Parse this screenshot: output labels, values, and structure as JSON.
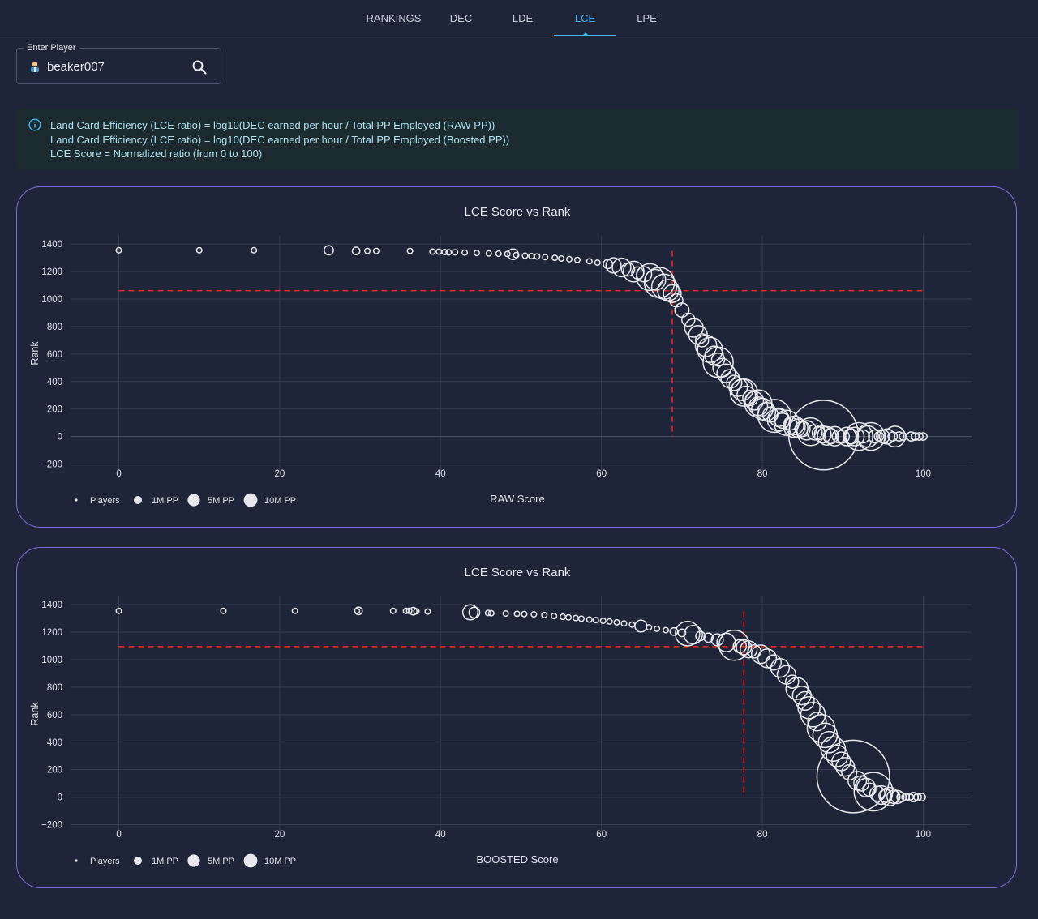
{
  "nav": {
    "tabs": [
      {
        "label": "RANKINGS",
        "active": false
      },
      {
        "label": "DEC",
        "active": false
      },
      {
        "label": "LDE",
        "active": false
      },
      {
        "label": "LCE",
        "active": true
      },
      {
        "label": "LPE",
        "active": false
      }
    ]
  },
  "player": {
    "legend": "Enter Player",
    "value": "beaker007",
    "avatar_icon": "user-avatar-icon",
    "search_icon": "search-icon"
  },
  "info": {
    "icon": "info-icon",
    "lines": [
      "Land Card Efficiency (LCE ratio) = log10(DEC earned per hour / Total PP Employed (RAW PP))",
      "Land Card Efficiency (LCE ratio) = log10(DEC earned per hour / Total PP Employed (Boosted PP))",
      "LCE Score = Normalized ratio (from 0 to 100)"
    ]
  },
  "colors": {
    "accent": "#3fb6f2",
    "card_border": "#7b6fd6",
    "marker": "#e6e8ee",
    "reference_line": "#e02424",
    "info_text": "#aee3f2"
  },
  "chart_data": [
    {
      "type": "scatter",
      "title": "LCE Score vs Rank",
      "xlabel": "RAW Score",
      "ylabel": "Rank",
      "xlim": [
        -6,
        106
      ],
      "ylim": [
        -250,
        1460
      ],
      "xticks": [
        0,
        20,
        40,
        60,
        80,
        100
      ],
      "xtick_labels": [
        "0",
        "20",
        "40",
        "60",
        "80",
        "100"
      ],
      "yticks": [
        -200,
        0,
        200,
        400,
        600,
        800,
        1000,
        1200,
        1400
      ],
      "ytick_labels": [
        "−200",
        "0",
        "200",
        "400",
        "600",
        "800",
        "1000",
        "1200",
        "1400"
      ],
      "grid": true,
      "legend": {
        "placement": "bottom-left",
        "entries": [
          {
            "label": "Players",
            "size": "small"
          },
          {
            "label": "1M PP",
            "size": "1M"
          },
          {
            "label": "5M PP",
            "size": "5M"
          },
          {
            "label": "10M PP",
            "size": "10M"
          }
        ]
      },
      "highlight": {
        "x": 68.8,
        "y": 1061
      },
      "series": [
        {
          "x": [
            0,
            10,
            16.8,
            26.1,
            29.5,
            30.9,
            32,
            36.2,
            39,
            39.8,
            40.5,
            41,
            41.8,
            43,
            44.5,
            46,
            47.2,
            48.3,
            49,
            49.4,
            50.5,
            51.3,
            52,
            53,
            54.2,
            55,
            56,
            57,
            58.5,
            59.5,
            60.8,
            61.5,
            62.5,
            63.3,
            64,
            64.5,
            65.3,
            66,
            66.7,
            67.2,
            67.8,
            68.3,
            68.8,
            69.3,
            70,
            70.8,
            71.5,
            72,
            72.5,
            73,
            73.5,
            74,
            74.5,
            74.5,
            75,
            75.5,
            76,
            76.5,
            77,
            77.5,
            77.7,
            78,
            78.5,
            79,
            79.5,
            79.5,
            80,
            80.5,
            81,
            81.5,
            82,
            82,
            82.5,
            83,
            83.5,
            84,
            84,
            84.5,
            85,
            85.5,
            86,
            86.5,
            87,
            87.5,
            87.6,
            88,
            88.5,
            89,
            89.5,
            90,
            90.5,
            91,
            91.5,
            92,
            92.5,
            93.1,
            93.5,
            94,
            94.5,
            95,
            95.5,
            96.2,
            96.5,
            97,
            97.5,
            98.5,
            99,
            99.5,
            100
          ],
          "y": [
            1355,
            1355,
            1355,
            1355,
            1350,
            1350,
            1350,
            1350,
            1345,
            1345,
            1342,
            1340,
            1340,
            1338,
            1335,
            1332,
            1330,
            1328,
            1326,
            1320,
            1315,
            1312,
            1310,
            1305,
            1300,
            1295,
            1290,
            1285,
            1275,
            1265,
            1255,
            1245,
            1230,
            1215,
            1200,
            1190,
            1180,
            1160,
            1140,
            1120,
            1090,
            1065,
            1040,
            990,
            920,
            850,
            790,
            740,
            700,
            660,
            630,
            590,
            560,
            540,
            500,
            460,
            420,
            390,
            360,
            340,
            320,
            300,
            280,
            260,
            240,
            220,
            200,
            180,
            160,
            150,
            140,
            120,
            115,
            100,
            95,
            80,
            70,
            60,
            55,
            45,
            35,
            30,
            25,
            15,
            10,
            5,
            3,
            2,
            1,
            0,
            0,
            0,
            0,
            0,
            0,
            0,
            0,
            0,
            0,
            0,
            0,
            0,
            0,
            0,
            0,
            0,
            0,
            0,
            0
          ],
          "pp_millions": [
            0.1,
            0.1,
            0.1,
            0.3,
            0.2,
            0.1,
            0.1,
            0.1,
            0.1,
            0.1,
            0.1,
            0.1,
            0.1,
            0.1,
            0.1,
            0.1,
            0.1,
            0.1,
            0.4,
            0.1,
            0.1,
            0.1,
            0.1,
            0.1,
            0.1,
            0.1,
            0.1,
            0.1,
            0.1,
            0.1,
            0.3,
            0.8,
            1.2,
            0.6,
            1.5,
            0.5,
            0.8,
            2.5,
            1.5,
            3.2,
            2.2,
            1.6,
            1.1,
            0.6,
            0.7,
            0.6,
            1.2,
            1.2,
            0.6,
            1.6,
            2.2,
            1.2,
            0.6,
            3.2,
            1.2,
            1.2,
            1.2,
            0.8,
            1.2,
            1.6,
            2.6,
            1.2,
            0.8,
            1.2,
            2.6,
            1.2,
            1.6,
            1.2,
            0.8,
            3.8,
            1.2,
            1.7,
            0.8,
            2.2,
            0.6,
            1.2,
            1.6,
            1.2,
            0.8,
            1.3,
            2.7,
            0.8,
            0.6,
            1,
            17,
            1.2,
            0.8,
            1.3,
            0.6,
            0.6,
            1.2,
            0.8,
            1.2,
            2.7,
            0.6,
            1.6,
            2.7,
            0.6,
            0.3,
            0.6,
            0.8,
            0.3,
            1.5,
            0.3,
            0.2,
            0.3,
            0.2,
            0.2,
            0.2,
            0.2
          ]
        }
      ]
    },
    {
      "type": "scatter",
      "title": "LCE Score vs Rank",
      "xlabel": "BOOSTED Score",
      "ylabel": "Rank",
      "xlim": [
        -6,
        106
      ],
      "ylim": [
        -250,
        1460
      ],
      "xticks": [
        0,
        20,
        40,
        60,
        80,
        100
      ],
      "xtick_labels": [
        "0",
        "20",
        "40",
        "60",
        "80",
        "100"
      ],
      "yticks": [
        -200,
        0,
        200,
        400,
        600,
        800,
        1000,
        1200,
        1400
      ],
      "ytick_labels": [
        "−200",
        "0",
        "200",
        "400",
        "600",
        "800",
        "1000",
        "1200",
        "1400"
      ],
      "grid": true,
      "legend": {
        "placement": "bottom-left",
        "entries": [
          {
            "label": "Players",
            "size": "small"
          },
          {
            "label": "1M PP",
            "size": "1M"
          },
          {
            "label": "5M PP",
            "size": "5M"
          },
          {
            "label": "10M PP",
            "size": "10M"
          }
        ]
      },
      "highlight": {
        "x": 77.7,
        "y": 1095
      },
      "series": [
        {
          "x": [
            0,
            13,
            21.9,
            29.6,
            29.8,
            34.1,
            35.7,
            36.1,
            36.6,
            37,
            38.4,
            43.7,
            44.2,
            45.9,
            46.3,
            48.1,
            49.5,
            50.4,
            51.6,
            52.9,
            54.1,
            55.2,
            55.9,
            56.8,
            57.5,
            58.5,
            59.3,
            60.2,
            61,
            61.9,
            62.8,
            63.8,
            64.9,
            65.9,
            66.9,
            68,
            69,
            70,
            70.7,
            71.4,
            72.3,
            73.3,
            74.4,
            75.5,
            76.5,
            77.2,
            77.7,
            78.3,
            79,
            79.8,
            80.6,
            81.4,
            82.2,
            83,
            83.7,
            84.3,
            84.9,
            85.3,
            85.8,
            86.3,
            86.8,
            87.3,
            87.8,
            88.3,
            88.8,
            89.3,
            89.8,
            90.3,
            90.8,
            91.3,
            91.8,
            92.3,
            92.9,
            93.3,
            93.8,
            94.3,
            94.8,
            95.3,
            95.8,
            96.3,
            96.8,
            97.3,
            97.8,
            98.3,
            98.8,
            99.3,
            99.8
          ],
          "y": [
            1355,
            1355,
            1355,
            1355,
            1355,
            1355,
            1355,
            1355,
            1353,
            1352,
            1350,
            1345,
            1343,
            1340,
            1338,
            1336,
            1334,
            1332,
            1330,
            1325,
            1318,
            1312,
            1308,
            1303,
            1298,
            1292,
            1288,
            1283,
            1278,
            1272,
            1264,
            1255,
            1245,
            1235,
            1225,
            1215,
            1205,
            1195,
            1190,
            1182,
            1172,
            1160,
            1145,
            1125,
            1105,
            1098,
            1090,
            1075,
            1060,
            1040,
            1010,
            980,
            940,
            890,
            840,
            790,
            740,
            700,
            650,
            600,
            550,
            500,
            450,
            400,
            350,
            300,
            260,
            220,
            180,
            150,
            120,
            100,
            70,
            55,
            40,
            25,
            15,
            10,
            5,
            2,
            1,
            0,
            0,
            0,
            0,
            0,
            0
          ],
          "pp_millions": [
            0.1,
            0.1,
            0.1,
            0.1,
            0.2,
            0.1,
            0.1,
            0.1,
            0.2,
            0.1,
            0.1,
            0.8,
            0.4,
            0.1,
            0.1,
            0.1,
            0.1,
            0.1,
            0.1,
            0.1,
            0.1,
            0.1,
            0.1,
            0.1,
            0.1,
            0.1,
            0.1,
            0.1,
            0.1,
            0.1,
            0.1,
            0.1,
            0.5,
            0.1,
            0.1,
            0.1,
            0.2,
            0.2,
            2.1,
            1.2,
            0.3,
            0.3,
            0.5,
            1.2,
            3.2,
            0.6,
            0.8,
            1,
            0.6,
            1.2,
            1.2,
            0.8,
            1.2,
            1.2,
            0.6,
            1.7,
            1.2,
            1.2,
            1.7,
            2.1,
            1.2,
            2.7,
            2.1,
            1.6,
            2.1,
            1.6,
            1.2,
            1.2,
            0.8,
            18.5,
            1.2,
            0.8,
            1.2,
            0.6,
            5.2,
            0.8,
            1.2,
            0.6,
            1.2,
            0.6,
            0.6,
            0.3,
            0.2,
            0.2,
            0.3,
            0.2,
            0.2
          ]
        }
      ]
    }
  ]
}
